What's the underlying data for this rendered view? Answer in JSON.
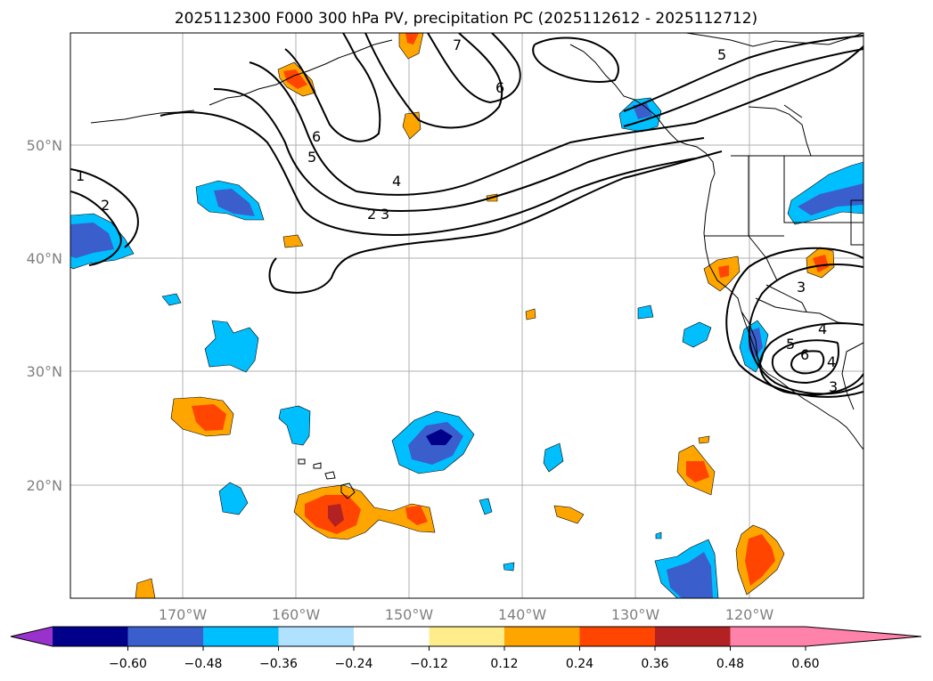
{
  "title": "2025112300 F000 300 hPa PV, precipitation PC (2025112612 - 2025112712)",
  "axes": {
    "lat_labels": [
      "50°N",
      "40°N",
      "30°N",
      "20°N"
    ],
    "lon_labels": [
      "170°W",
      "160°W",
      "150°W",
      "140°W",
      "130°W",
      "120°W"
    ]
  },
  "colorbar": {
    "ticks": [
      "−0.60",
      "−0.48",
      "−0.36",
      "−0.24",
      "−0.12",
      "0.12",
      "0.24",
      "0.36",
      "0.48",
      "0.60"
    ],
    "colors": [
      "#9932cc",
      "#00008b",
      "#3a5fcd",
      "#00bfff",
      "#b0e2ff",
      "#ffffff",
      "#ffec8b",
      "#ffa500",
      "#ff4500",
      "#b22222",
      "#ff82ab"
    ]
  },
  "pv_contour_labels": [
    "1",
    "2",
    "3",
    "4",
    "5",
    "6",
    "7",
    "6",
    "5",
    "2",
    "3",
    "4",
    "5",
    "6",
    "4",
    "3"
  ],
  "colors": {
    "gridline": "#b0b0b0",
    "contour": "#000000"
  }
}
